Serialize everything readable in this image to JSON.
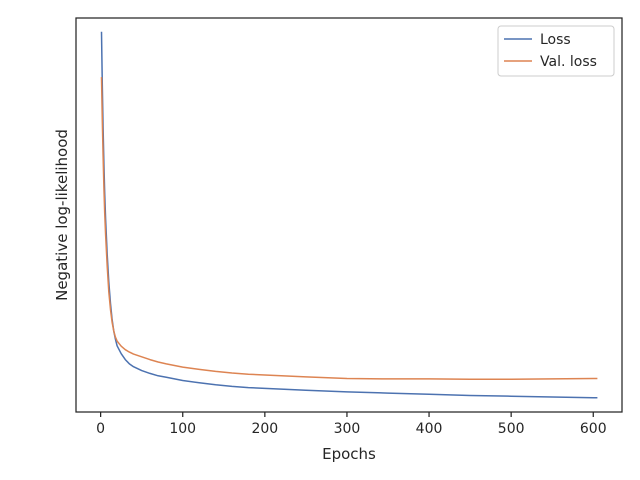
{
  "chart_data": {
    "type": "line",
    "title": "",
    "xlabel": "Epochs",
    "ylabel": "Negative log-likelihood",
    "xlim": [
      -30,
      635
    ],
    "ylim": [
      0.0,
      1.0
    ],
    "xticks": [
      0,
      100,
      200,
      300,
      400,
      500,
      600
    ],
    "y_tick_labels_shown": false,
    "grid": false,
    "legend": {
      "position": "top-right"
    },
    "series": [
      {
        "name": "Loss",
        "color": "#4c72b0",
        "x": [
          1,
          2,
          3,
          4,
          5,
          6,
          8,
          10,
          12,
          14,
          16,
          18,
          20,
          25,
          30,
          35,
          40,
          50,
          60,
          70,
          80,
          90,
          100,
          120,
          140,
          160,
          180,
          200,
          250,
          300,
          350,
          400,
          450,
          500,
          550,
          600,
          605
        ],
        "y": [
          0.965,
          0.83,
          0.72,
          0.63,
          0.555,
          0.49,
          0.4,
          0.33,
          0.275,
          0.235,
          0.205,
          0.185,
          0.168,
          0.148,
          0.133,
          0.122,
          0.115,
          0.105,
          0.098,
          0.092,
          0.088,
          0.084,
          0.08,
          0.074,
          0.069,
          0.065,
          0.062,
          0.06,
          0.055,
          0.051,
          0.048,
          0.045,
          0.042,
          0.04,
          0.038,
          0.036,
          0.036
        ]
      },
      {
        "name": "Val. loss",
        "color": "#dd8452",
        "x": [
          1,
          2,
          3,
          4,
          5,
          6,
          8,
          10,
          12,
          14,
          16,
          18,
          20,
          25,
          30,
          35,
          40,
          50,
          60,
          70,
          80,
          90,
          100,
          120,
          140,
          160,
          180,
          200,
          250,
          300,
          350,
          400,
          450,
          500,
          550,
          600,
          605
        ],
        "y": [
          0.85,
          0.74,
          0.65,
          0.57,
          0.505,
          0.45,
          0.37,
          0.305,
          0.26,
          0.228,
          0.205,
          0.19,
          0.18,
          0.167,
          0.158,
          0.152,
          0.147,
          0.14,
          0.133,
          0.127,
          0.122,
          0.118,
          0.114,
          0.108,
          0.103,
          0.099,
          0.096,
          0.094,
          0.089,
          0.085,
          0.084,
          0.084,
          0.083,
          0.083,
          0.084,
          0.085,
          0.085
        ]
      }
    ]
  }
}
